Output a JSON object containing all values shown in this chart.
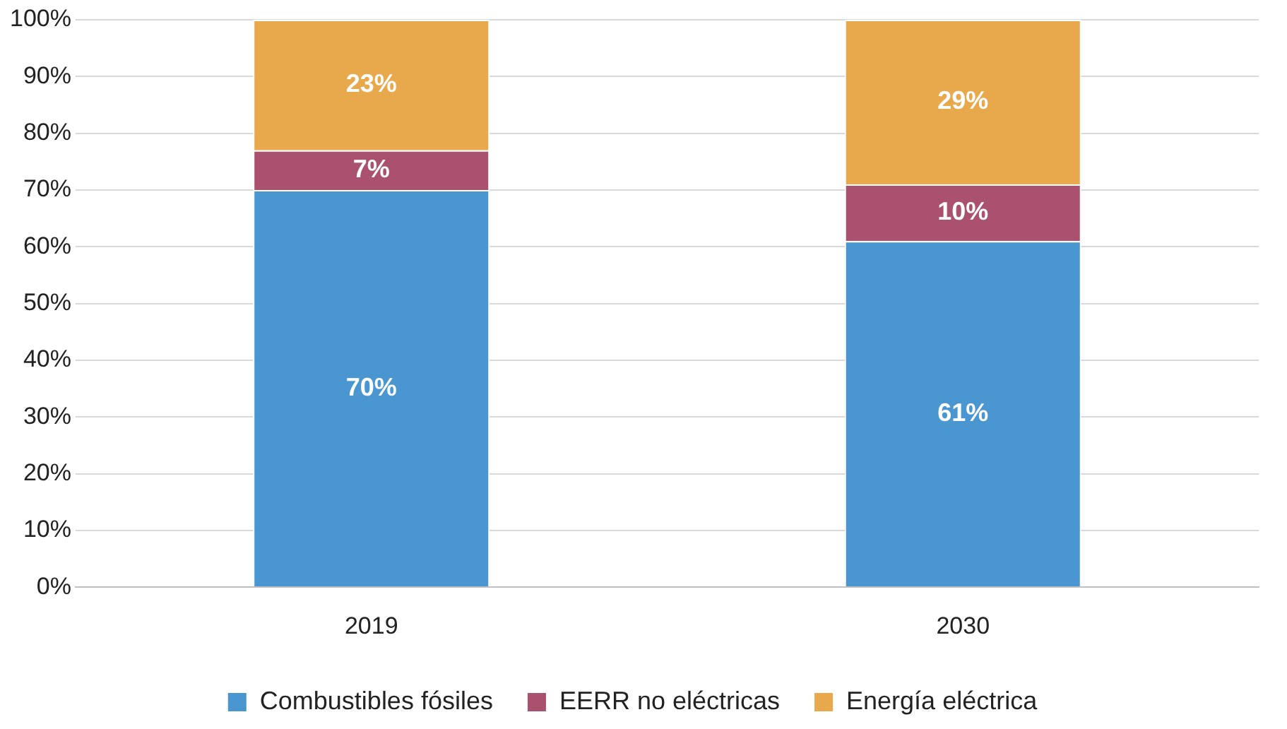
{
  "chart_data": {
    "type": "bar",
    "stacked": true,
    "categories": [
      "2019",
      "2030"
    ],
    "series": [
      {
        "name": "Combustibles fósiles",
        "color": "#4a96d0",
        "values": [
          70,
          61
        ],
        "value_labels": [
          "70%",
          "61%"
        ]
      },
      {
        "name": "EERR no eléctricas",
        "color": "#a9516e",
        "values": [
          7,
          10
        ],
        "value_labels": [
          "7%",
          "10%"
        ]
      },
      {
        "name": "Energía eléctrica",
        "color": "#e8a84c",
        "values": [
          23,
          29
        ],
        "value_labels": [
          "23%",
          "29%"
        ]
      }
    ],
    "ylim": [
      0,
      100
    ],
    "yticks": [
      {
        "value": 0,
        "label": "0%"
      },
      {
        "value": 10,
        "label": "10%"
      },
      {
        "value": 20,
        "label": "20%"
      },
      {
        "value": 30,
        "label": "30%"
      },
      {
        "value": 40,
        "label": "40%"
      },
      {
        "value": 50,
        "label": "50%"
      },
      {
        "value": 60,
        "label": "60%"
      },
      {
        "value": 70,
        "label": "70%"
      },
      {
        "value": 80,
        "label": "80%"
      },
      {
        "value": 90,
        "label": "90%"
      },
      {
        "value": 100,
        "label": "100%"
      }
    ],
    "grid": "y",
    "legend": "bottom"
  }
}
